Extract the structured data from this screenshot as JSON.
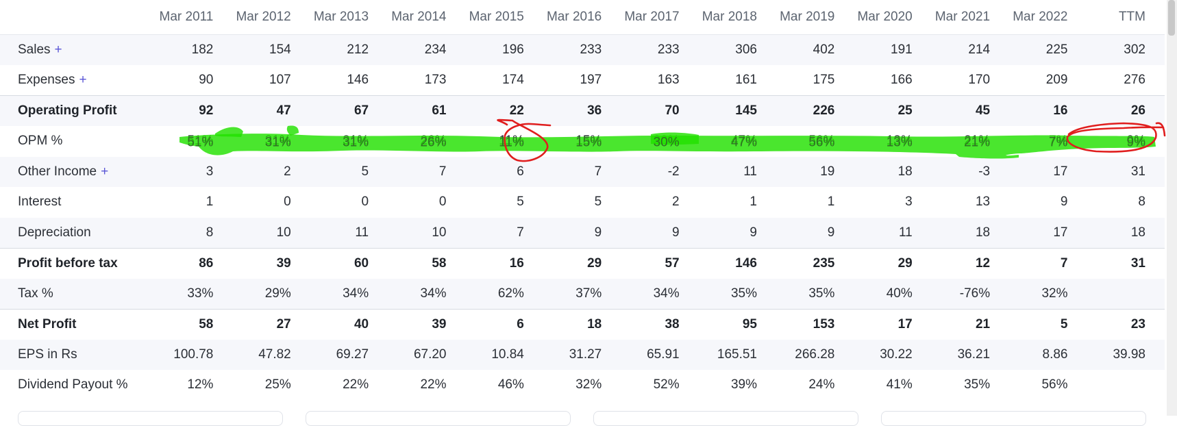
{
  "table": {
    "columns": [
      "Mar 2011",
      "Mar 2012",
      "Mar 2013",
      "Mar 2014",
      "Mar 2015",
      "Mar 2016",
      "Mar 2017",
      "Mar 2018",
      "Mar 2019",
      "Mar 2020",
      "Mar 2021",
      "Mar 2022",
      "TTM"
    ],
    "rows": [
      {
        "label": "Sales",
        "expand": "+",
        "values": [
          "182",
          "154",
          "212",
          "234",
          "196",
          "233",
          "233",
          "306",
          "402",
          "191",
          "214",
          "225",
          "302"
        ]
      },
      {
        "label": "Expenses",
        "expand": "+",
        "values": [
          "90",
          "107",
          "146",
          "173",
          "174",
          "197",
          "163",
          "161",
          "175",
          "166",
          "170",
          "209",
          "276"
        ]
      },
      {
        "label": "Operating Profit",
        "values": [
          "92",
          "47",
          "67",
          "61",
          "22",
          "36",
          "70",
          "145",
          "226",
          "25",
          "45",
          "16",
          "26"
        ]
      },
      {
        "label": "OPM %",
        "values": [
          "51%",
          "31%",
          "31%",
          "26%",
          "11%",
          "15%",
          "30%",
          "47%",
          "56%",
          "13%",
          "21%",
          "7%",
          "9%"
        ]
      },
      {
        "label": "Other Income",
        "expand": "+",
        "values": [
          "3",
          "2",
          "5",
          "7",
          "6",
          "7",
          "-2",
          "11",
          "19",
          "18",
          "-3",
          "17",
          "31"
        ]
      },
      {
        "label": "Interest",
        "values": [
          "1",
          "0",
          "0",
          "0",
          "5",
          "5",
          "2",
          "1",
          "1",
          "3",
          "13",
          "9",
          "8"
        ]
      },
      {
        "label": "Depreciation",
        "values": [
          "8",
          "10",
          "11",
          "10",
          "7",
          "9",
          "9",
          "9",
          "9",
          "11",
          "18",
          "17",
          "18"
        ]
      },
      {
        "label": "Profit before tax",
        "values": [
          "86",
          "39",
          "60",
          "58",
          "16",
          "29",
          "57",
          "146",
          "235",
          "29",
          "12",
          "7",
          "31"
        ]
      },
      {
        "label": "Tax %",
        "values": [
          "33%",
          "29%",
          "34%",
          "34%",
          "62%",
          "37%",
          "34%",
          "35%",
          "35%",
          "40%",
          "-76%",
          "32%",
          ""
        ]
      },
      {
        "label": "Net Profit",
        "values": [
          "58",
          "27",
          "40",
          "39",
          "6",
          "18",
          "38",
          "95",
          "153",
          "17",
          "21",
          "5",
          "23"
        ]
      },
      {
        "label": "EPS in Rs",
        "values": [
          "100.78",
          "47.82",
          "69.27",
          "67.20",
          "10.84",
          "31.27",
          "65.91",
          "165.51",
          "266.28",
          "30.22",
          "36.21",
          "8.86",
          "39.98"
        ]
      },
      {
        "label": "Dividend Payout %",
        "values": [
          "12%",
          "25%",
          "22%",
          "22%",
          "46%",
          "32%",
          "52%",
          "39%",
          "24%",
          "41%",
          "35%",
          "56%",
          ""
        ]
      }
    ]
  },
  "colors": {
    "highlight": "#22e000",
    "circle": "#e01e1e",
    "plus": "#5a56d6",
    "shade": "#f6f7fb"
  }
}
